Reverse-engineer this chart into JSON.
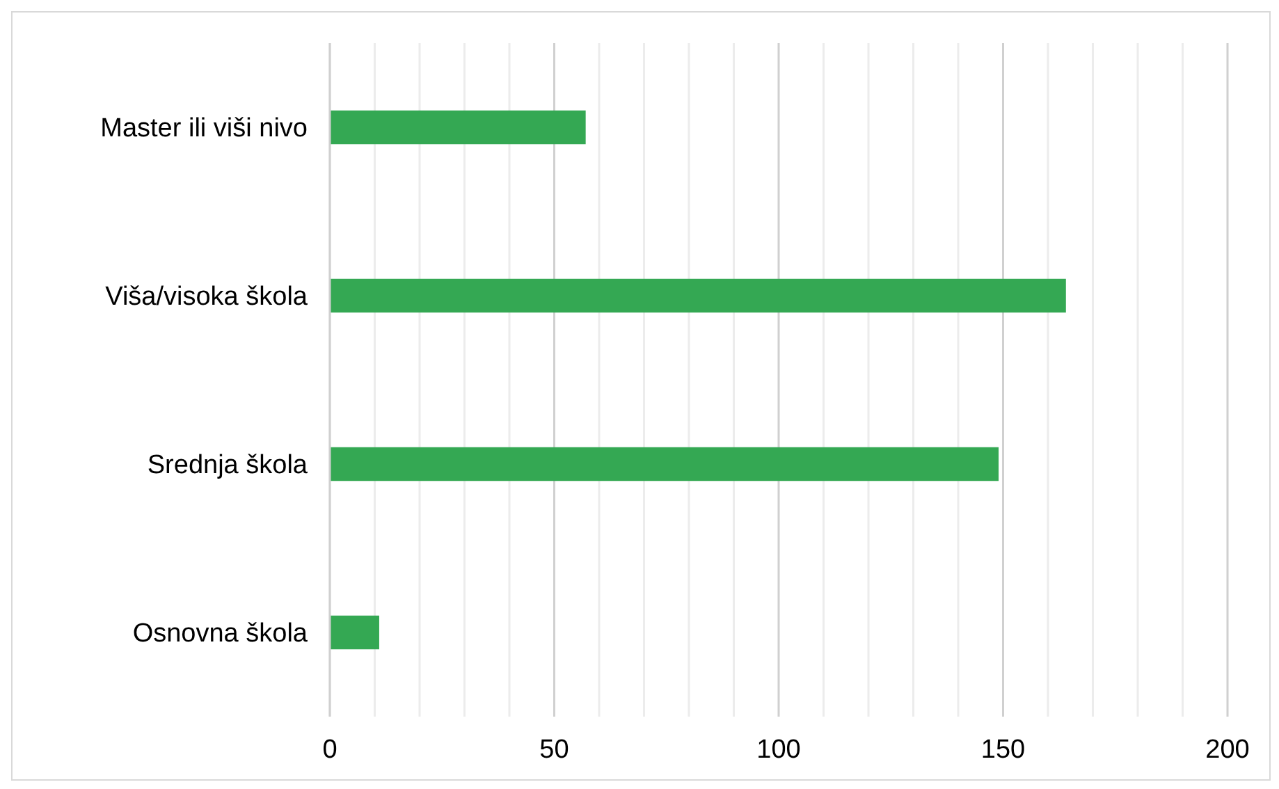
{
  "chart_data": {
    "type": "bar",
    "orientation": "horizontal",
    "categories": [
      "Master ili viši nivo",
      "Viša/visoka škola",
      "Srednja škola",
      "Osnovna škola"
    ],
    "values": [
      57,
      164,
      149,
      11
    ],
    "color": "#34a853",
    "xlim": [
      0,
      200
    ],
    "xticks": [
      0,
      {
        "value": 10,
        "label": null
      },
      {
        "value": 20,
        "label": null
      },
      {
        "value": 30,
        "label": null
      },
      {
        "value": 40,
        "label": null
      },
      50,
      {
        "value": 60,
        "label": null
      },
      {
        "value": 70,
        "label": null
      },
      {
        "value": 80,
        "label": null
      },
      {
        "value": 90,
        "label": null
      },
      100,
      {
        "value": 110,
        "label": null
      },
      {
        "value": 120,
        "label": null
      },
      {
        "value": 130,
        "label": null
      },
      {
        "value": 140,
        "label": null
      },
      150,
      {
        "value": 160,
        "label": null
      },
      {
        "value": 170,
        "label": null
      },
      {
        "value": 180,
        "label": null
      },
      {
        "value": 190,
        "label": null
      },
      200
    ],
    "grid": "x"
  }
}
